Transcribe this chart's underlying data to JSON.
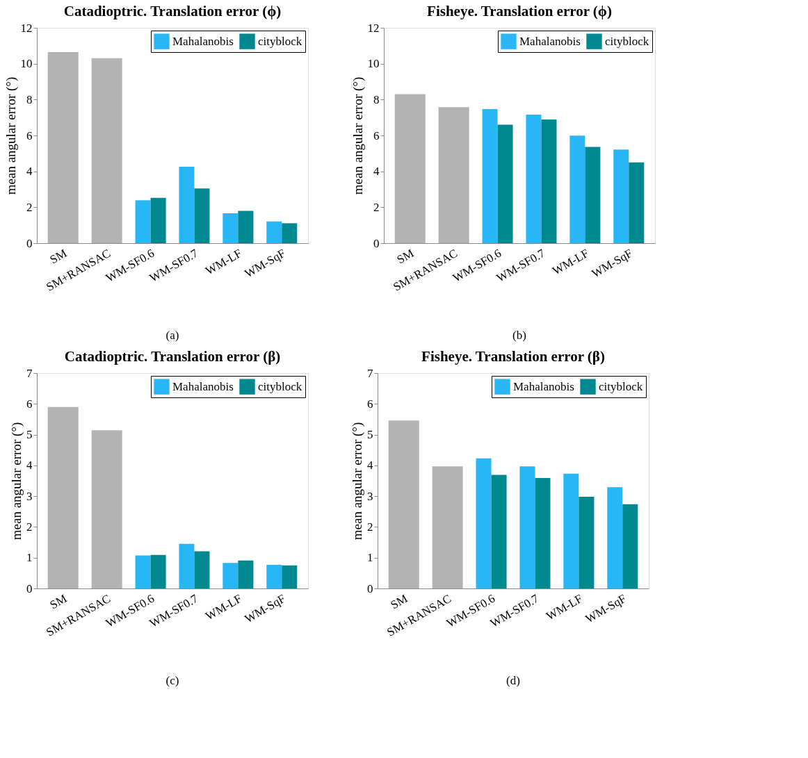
{
  "chart_data": [
    {
      "type": "bar",
      "title": "Catadioptric. Translation error (ϕ)",
      "ylabel": "mean angular error (°)",
      "categories": [
        "SM",
        "SM+RANSAC",
        "WM-SF0.6",
        "WM-SF0.7",
        "WM-LF",
        "WM-SqF"
      ],
      "series": [
        {
          "color": "#b3b3b3",
          "values": [
            10.65,
            10.31,
            null,
            null,
            null,
            null
          ]
        },
        {
          "name": "Mahalanobis",
          "color": "#29b6f6",
          "values": [
            null,
            null,
            2.39,
            4.26,
            1.66,
            1.21
          ]
        },
        {
          "name": "cityblock",
          "color": "#008891",
          "values": [
            null,
            null,
            2.53,
            3.05,
            1.8,
            1.11
          ]
        }
      ],
      "ylim": [
        0,
        12
      ],
      "yticks": [
        0,
        2,
        4,
        6,
        8,
        10,
        12
      ],
      "grid": false,
      "legend": "top right",
      "annotations": [
        "(a)"
      ]
    },
    {
      "type": "bar",
      "title": "Fisheye. Translation error (ϕ)",
      "ylabel": "mean angular error (°)",
      "categories": [
        "SM",
        "SM+RANSAC",
        "WM-SF0.6",
        "WM-SF0.7",
        "WM-LF",
        "WM-SqF"
      ],
      "series": [
        {
          "color": "#b3b3b3",
          "values": [
            8.3,
            7.58,
            null,
            null,
            null,
            null
          ]
        },
        {
          "name": "Mahalanobis",
          "color": "#29b6f6",
          "values": [
            null,
            null,
            7.47,
            7.16,
            5.99,
            5.22
          ]
        },
        {
          "name": "cityblock",
          "color": "#008891",
          "values": [
            null,
            null,
            6.6,
            6.89,
            5.36,
            4.5
          ]
        }
      ],
      "ylim": [
        0,
        12
      ],
      "yticks": [
        0,
        2,
        4,
        6,
        8,
        10,
        12
      ],
      "grid": false,
      "legend": "top right",
      "annotations": [
        "(b)"
      ]
    },
    {
      "type": "bar",
      "title": "Catadioptric. Translation error (β)",
      "ylabel": "mean angular error (°)",
      "categories": [
        "SM",
        "SM+RANSAC",
        "WM-SF0.6",
        "WM-SF0.7",
        "WM-LF",
        "WM-SqF"
      ],
      "series": [
        {
          "color": "#b3b3b3",
          "values": [
            5.9,
            5.14,
            null,
            null,
            null,
            null
          ]
        },
        {
          "name": "Mahalanobis",
          "color": "#29b6f6",
          "values": [
            null,
            null,
            1.07,
            1.45,
            0.83,
            0.77
          ]
        },
        {
          "name": "cityblock",
          "color": "#008891",
          "values": [
            null,
            null,
            1.09,
            1.21,
            0.91,
            0.75
          ]
        }
      ],
      "ylim": [
        0,
        7
      ],
      "yticks": [
        0,
        1,
        2,
        3,
        4,
        5,
        6,
        7
      ],
      "grid": false,
      "legend": "top right",
      "annotations": [
        "(c)"
      ]
    },
    {
      "type": "bar",
      "title": "Fisheye. Translation error (β)",
      "ylabel": "mean angular error (°)",
      "categories": [
        "SM",
        "SM+RANSAC",
        "WM-SF0.6",
        "WM-SF0.7",
        "WM-LF",
        "WM-SqF"
      ],
      "series": [
        {
          "color": "#b3b3b3",
          "values": [
            5.46,
            3.97,
            null,
            null,
            null,
            null
          ]
        },
        {
          "name": "Mahalanobis",
          "color": "#29b6f6",
          "values": [
            null,
            null,
            4.23,
            3.97,
            3.73,
            3.29
          ]
        },
        {
          "name": "cityblock",
          "color": "#008891",
          "values": [
            null,
            null,
            3.69,
            3.59,
            2.98,
            2.74
          ]
        }
      ],
      "ylim": [
        0,
        7
      ],
      "yticks": [
        0,
        1,
        2,
        3,
        4,
        5,
        6,
        7
      ],
      "grid": false,
      "legend": "top right",
      "annotations": [
        "(d)"
      ]
    }
  ]
}
